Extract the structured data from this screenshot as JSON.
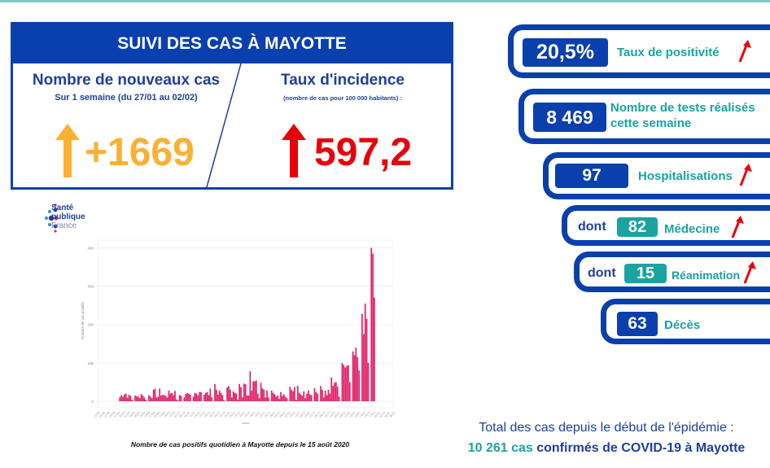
{
  "summary": {
    "title": "SUIVI DES CAS À MAYOTTE",
    "new_cases": {
      "title": "Nombre de nouveaux cas",
      "subtitle": "Sur 1 semaine (du 27/01 au 02/02)",
      "value": "+1669",
      "trend": "up",
      "color": "#fbb034"
    },
    "incidence": {
      "title": "Taux d'incidence",
      "subtitle": "(nombre de cas pour 100 000 habitants) :",
      "value": "597,2",
      "trend": "up",
      "color": "#e8000b"
    }
  },
  "stats": [
    {
      "value": "20,5%",
      "label": "Taux de positivité",
      "trend": "up",
      "badge": "blue"
    },
    {
      "value": "8 469",
      "label": "Nombre de tests réalisés cette semaine",
      "trend": null,
      "badge": "blue"
    },
    {
      "value": "97",
      "label": "Hospitalisations",
      "trend": "up",
      "badge": "blue"
    },
    {
      "prefix": "dont",
      "value": "82",
      "label": "Médecine",
      "trend": "up",
      "badge": "teal"
    },
    {
      "prefix": "dont",
      "value": "15",
      "label": "Réanimation",
      "trend": "up",
      "badge": "teal"
    },
    {
      "value": "63",
      "label": "Décès",
      "trend": null,
      "badge": "blue"
    }
  ],
  "total": {
    "line1": "Total des cas depuis le début de l'épidémie :",
    "count": "10 261 cas",
    "rest": " confirmés de COVID-19 à Mayotte"
  },
  "logo": {
    "line1": "Santé",
    "line2": "publique",
    "line3": "France"
  },
  "caption": "Nombre de cas positifs quotidien à Mayotte depuis le 15 août 2020",
  "colors": {
    "primary": "#0a3fae",
    "teal": "#1aa3a0",
    "bar": "#e0256b",
    "up_red": "#e8000b",
    "up_orange": "#fbb034"
  },
  "chart_data": {
    "type": "bar",
    "title": "",
    "xlabel": "Jours",
    "ylabel": "Nombre de cas positifs",
    "ylim": [
      0,
      420
    ],
    "yticks": [
      0,
      100,
      200,
      300,
      400
    ],
    "grid": true,
    "x_start": "2020-08-15",
    "xticks": [
      "15/08",
      "18/08",
      "21/08",
      "24/08",
      "27/08",
      "30/08",
      "02/09",
      "05/09",
      "08/09",
      "11/09",
      "14/09",
      "17/09",
      "20/09",
      "23/09",
      "26/09",
      "29/09",
      "02/10",
      "05/10",
      "08/10",
      "11/10",
      "14/10",
      "17/10",
      "20/10",
      "23/10",
      "26/10",
      "29/10",
      "01/11",
      "04/11",
      "07/11",
      "10/11",
      "13/11",
      "16/11",
      "19/11",
      "22/11",
      "25/11",
      "28/11",
      "01/12",
      "04/12",
      "07/12",
      "10/12",
      "13/12",
      "16/12",
      "19/12",
      "22/12",
      "25/12",
      "28/12",
      "31/12",
      "03/01",
      "06/01",
      "09/01",
      "12/01",
      "15/01",
      "18/01",
      "21/01",
      "24/01",
      "27/01",
      "30/01",
      "02/02",
      "05/02",
      "08/02"
    ],
    "values": [
      0,
      0,
      0,
      0,
      0,
      0,
      10,
      16,
      12,
      18,
      20,
      9,
      17,
      14,
      4,
      0,
      15,
      13,
      12,
      8,
      19,
      15,
      10,
      4,
      0,
      16,
      12,
      8,
      30,
      33,
      10,
      12,
      33,
      15,
      17,
      16,
      14,
      10,
      28,
      20,
      22,
      16,
      27,
      5,
      2,
      16,
      14,
      0,
      10,
      19,
      21,
      20,
      17,
      0,
      12,
      22,
      20,
      15,
      24,
      24,
      0,
      17,
      22,
      24,
      16,
      33,
      10,
      0,
      45,
      30,
      17,
      28,
      22,
      16,
      3,
      0,
      36,
      40,
      30,
      10,
      26,
      22,
      20,
      4,
      45,
      37,
      10,
      46,
      44,
      15,
      15,
      78,
      28,
      52,
      52,
      54,
      20,
      8,
      48,
      34,
      30,
      10,
      28,
      10,
      0,
      28,
      22,
      18,
      12,
      15,
      6,
      24,
      14,
      18,
      12,
      8,
      0,
      38,
      30,
      26,
      37,
      4,
      40,
      22,
      18,
      14,
      26,
      8,
      20,
      28,
      18,
      16,
      0,
      34,
      24,
      20,
      0,
      40,
      30,
      10,
      28,
      16,
      30,
      20,
      62,
      40,
      48,
      50,
      38,
      12,
      0,
      100,
      95,
      88,
      92,
      94,
      50,
      0,
      130,
      120,
      140,
      115,
      80,
      0,
      228,
      175,
      255,
      215,
      100,
      0,
      400,
      385,
      270
    ]
  }
}
